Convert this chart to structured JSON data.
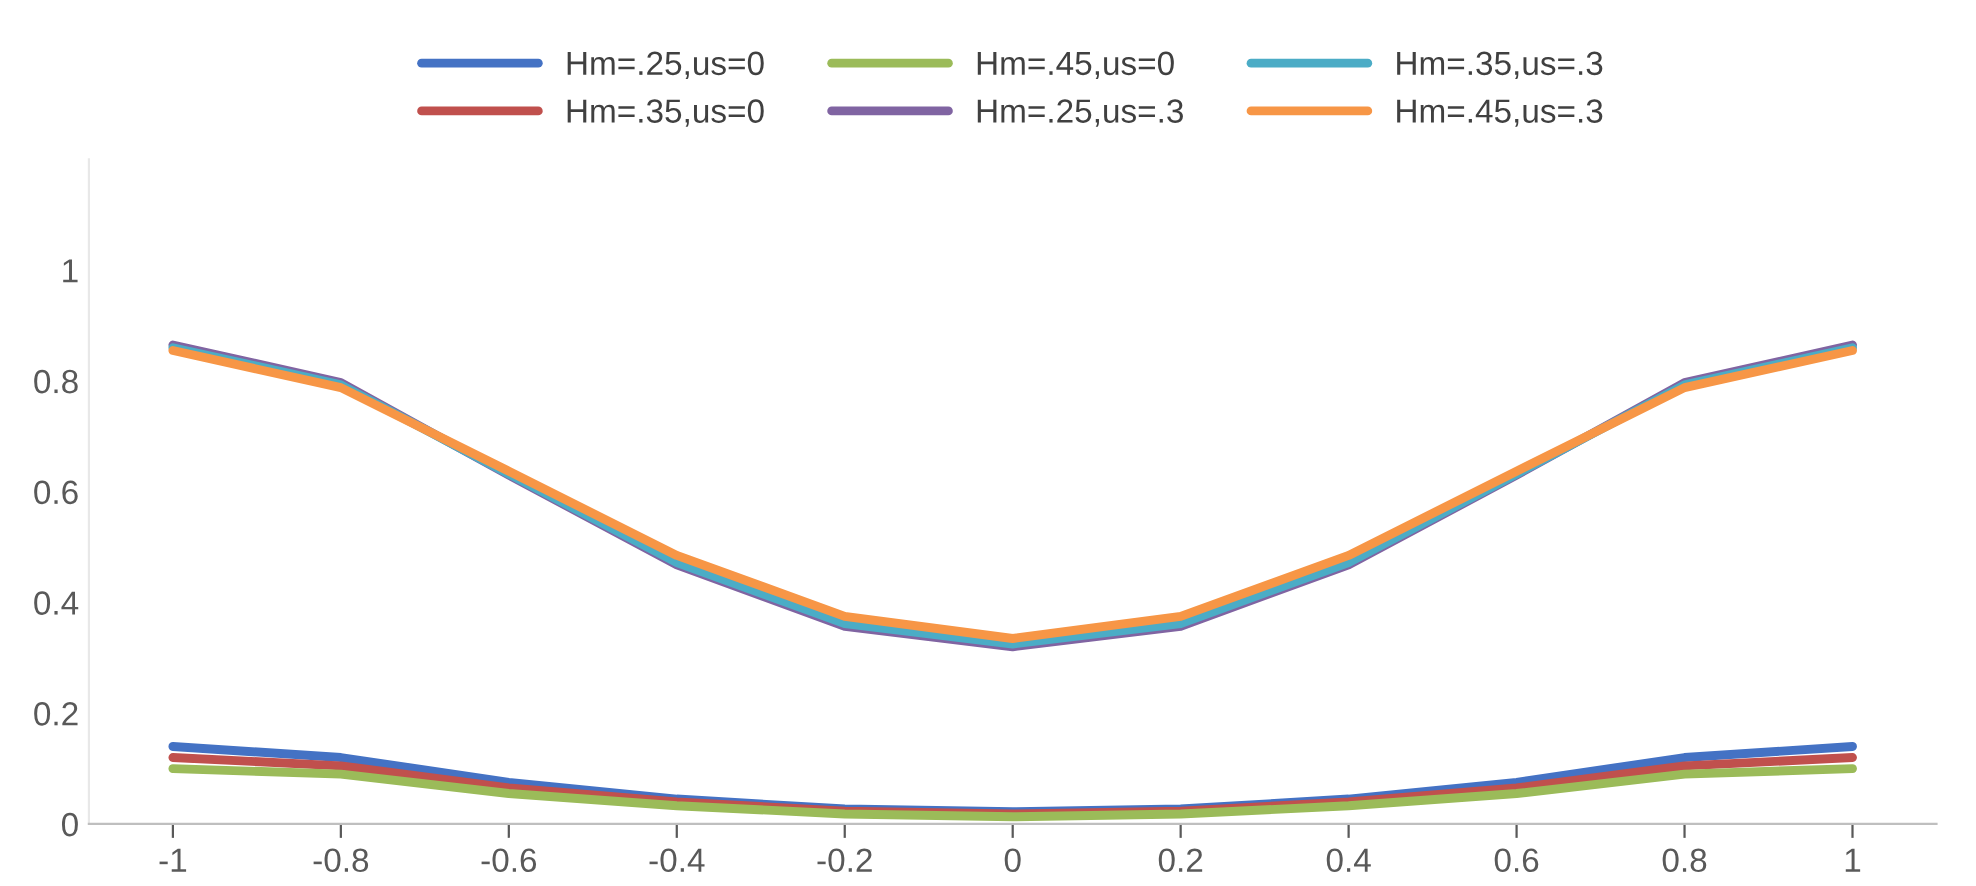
{
  "chart_data": {
    "type": "line",
    "categories": [
      "-1",
      "-0.8",
      "-0.6",
      "-0.4",
      "-0.2",
      "0",
      "0.2",
      "0.4",
      "0.6",
      "0.8",
      "1"
    ],
    "series": [
      {
        "name": "Hm=.25,us=0",
        "color": "#4472c4",
        "values": [
          0.14,
          0.12,
          0.075,
          0.045,
          0.027,
          0.022,
          0.027,
          0.045,
          0.075,
          0.12,
          0.14
        ]
      },
      {
        "name": "Hm=.35,us=0",
        "color": "#c0504d",
        "values": [
          0.12,
          0.105,
          0.065,
          0.04,
          0.023,
          0.018,
          0.023,
          0.04,
          0.065,
          0.105,
          0.12
        ]
      },
      {
        "name": "Hm=.45,us=0",
        "color": "#9bbb59",
        "values": [
          0.1,
          0.09,
          0.055,
          0.033,
          0.018,
          0.013,
          0.018,
          0.033,
          0.055,
          0.09,
          0.1
        ]
      },
      {
        "name": "Hm=.25,us=.3",
        "color": "#8064a2",
        "values": [
          0.865,
          0.797,
          0.63,
          0.468,
          0.357,
          0.32,
          0.357,
          0.468,
          0.63,
          0.797,
          0.865
        ]
      },
      {
        "name": "Hm=.35,us=.3",
        "color": "#4bacc6",
        "values": [
          0.86,
          0.793,
          0.632,
          0.472,
          0.362,
          0.325,
          0.362,
          0.472,
          0.632,
          0.793,
          0.86
        ]
      },
      {
        "name": "Hm=.45,us=.3",
        "color": "#f79646",
        "values": [
          0.855,
          0.788,
          0.637,
          0.485,
          0.375,
          0.335,
          0.375,
          0.485,
          0.637,
          0.788,
          0.855
        ]
      }
    ],
    "ylim": [
      0,
      1.2
    ],
    "yticks": [
      0,
      0.2,
      0.4,
      0.6,
      0.8,
      1
    ],
    "grid": false,
    "legend": "top",
    "marker": "none",
    "line_style": "solid"
  }
}
